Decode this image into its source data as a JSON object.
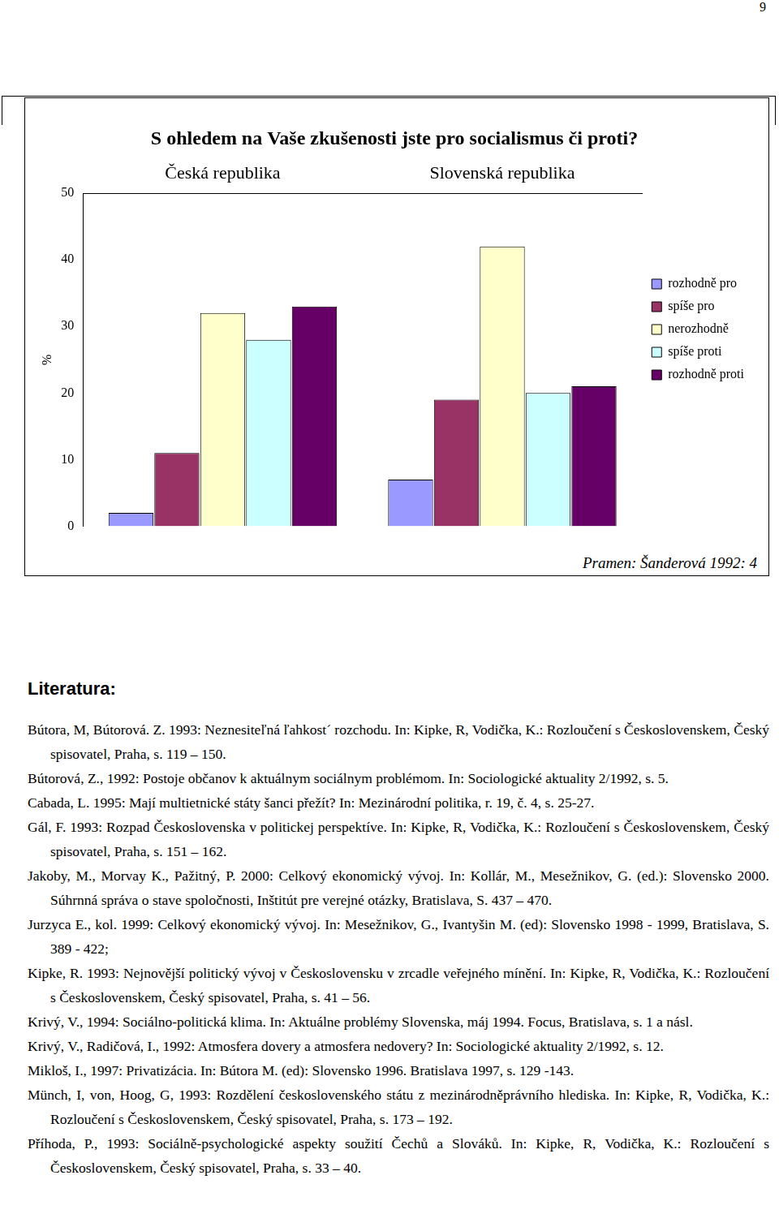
{
  "page_number": "9",
  "chart_data": {
    "type": "bar",
    "title": "S ohledem na Vaše zkušenosti jste pro socialismus či proti?",
    "ylabel": "%",
    "categories": [
      "Česká republika",
      "Slovenská republika"
    ],
    "series": [
      {
        "name": "rozhodně pro",
        "color": "#9999ff",
        "values": [
          2,
          7
        ]
      },
      {
        "name": "spíše pro",
        "color": "#993366",
        "values": [
          11,
          19
        ]
      },
      {
        "name": "nerozhodně",
        "color": "#ffffcc",
        "values": [
          32,
          42
        ]
      },
      {
        "name": "spíše proti",
        "color": "#ccffff",
        "values": [
          28,
          20
        ]
      },
      {
        "name": "rozhodně proti",
        "color": "#660066",
        "values": [
          33,
          21
        ]
      }
    ],
    "ylim": [
      0,
      50
    ],
    "yticks": [
      0,
      10,
      20,
      30,
      40,
      50
    ],
    "grid": false,
    "legend": "right",
    "source": "Pramen: Šanderová 1992: 4"
  },
  "literature": {
    "heading": "Literatura:",
    "entries": [
      "Bútora, M, Bútorová. Z. 1993: Neznesiteľná ľahkost´ rozchodu. In: Kipke, R, Vodička, K.: Rozloučení s Československem, Český spisovatel, Praha, s. 119 – 150.",
      "Bútorová, Z., 1992: Postoje občanov k aktuálnym sociálnym problémom. In: Sociologické aktuality 2/1992, s. 5.",
      "Cabada, L. 1995: Mají multietnické státy šanci přežít? In: Mezinárodní politika, r. 19, č. 4, s. 25-27.",
      "Gál, F. 1993: Rozpad Československa v politickej perspektíve. In: Kipke, R, Vodička, K.: Rozloučení s Československem, Český spisovatel, Praha, s. 151 – 162.",
      "Jakoby, M., Morvay K., Pažitný, P. 2000: Celkový ekonomický vývoj. In: Kollár, M., Mesežnikov, G. (ed.): Slovensko 2000. Súhrnná správa o stave spoločnosti, Inštitút pre verejné otázky, Bratislava, S. 437 – 470.",
      "Jurzyca E., kol. 1999: Celkový ekonomický vývoj. In: Mesežnikov, G., Ivantyšin M. (ed): Slovensko 1998 - 1999, Bratislava, S. 389 - 422;",
      "Kipke, R. 1993: Nejnovější politický vývoj v Československu v zrcadle veřejného mínění. In: Kipke, R, Vodička, K.: Rozloučení s Československem, Český spisovatel, Praha, s. 41 – 56.",
      "Krivý, V., 1994: Sociálno-politická klima. In: Aktuálne problémy Slovenska, máj 1994. Focus, Bratislava, s. 1 a násl.",
      "Krivý, V., Radičová, I., 1992: Atmosfera dovery a atmosfera nedovery? In: Sociologické aktuality 2/1992, s. 12.",
      "Mikloš, I., 1997: Privatizácia. In: Bútora M. (ed): Slovensko 1996. Bratislava 1997, s. 129 -143.",
      "Münch, I, von, Hoog, G, 1993: Rozdělení československého státu z mezinárodněprávního hlediska. In: Kipke, R, Vodička, K.: Rozloučení s Československem, Český spisovatel, Praha, s. 173 – 192.",
      "Příhoda, P., 1993: Sociálně-psychologické aspekty soužití Čechů a Slováků. In: Kipke, R, Vodička, K.: Rozloučení s Československem, Český spisovatel, Praha, s. 33 – 40."
    ]
  }
}
